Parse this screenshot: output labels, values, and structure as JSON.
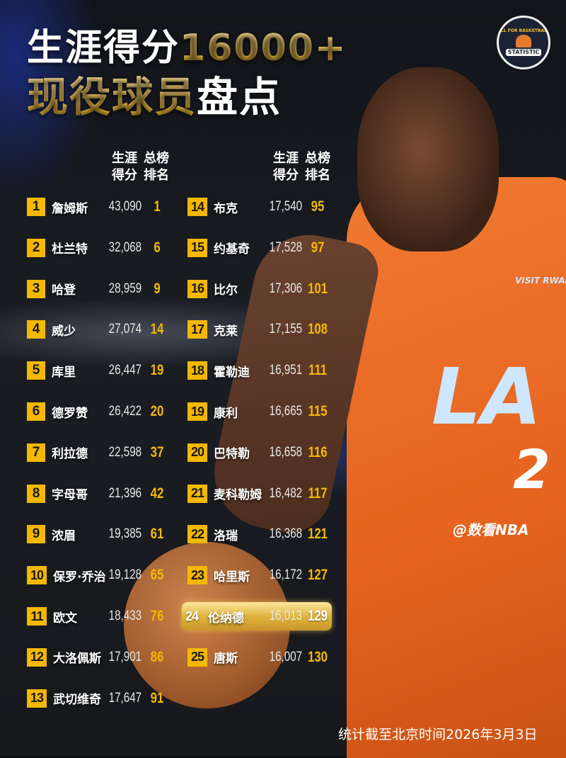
{
  "title": {
    "line1_white": "生涯得分",
    "line1_gold": "16000+",
    "line2_gold": "现役球员",
    "line2_white": "盘点"
  },
  "logo": {
    "top_text": "ALL FOR BASKETBALL",
    "bottom_text": "STATISTIC"
  },
  "columns": {
    "score_header": [
      "生涯",
      "得分"
    ],
    "rank_header": [
      "总榜",
      "排名"
    ]
  },
  "colors": {
    "badge": "#f5b800",
    "rank": "#f5b800",
    "highlight": "#e0b43c"
  },
  "players": [
    {
      "no": "1",
      "name": "詹姆斯",
      "score": "43,090",
      "rank": "1"
    },
    {
      "no": "2",
      "name": "杜兰特",
      "score": "32,068",
      "rank": "6"
    },
    {
      "no": "3",
      "name": "哈登",
      "score": "28,959",
      "rank": "9"
    },
    {
      "no": "4",
      "name": "威少",
      "score": "27,074",
      "rank": "14"
    },
    {
      "no": "5",
      "name": "库里",
      "score": "26,447",
      "rank": "19"
    },
    {
      "no": "6",
      "name": "德罗赞",
      "score": "26,422",
      "rank": "20"
    },
    {
      "no": "7",
      "name": "利拉德",
      "score": "22,598",
      "rank": "37"
    },
    {
      "no": "8",
      "name": "字母哥",
      "score": "21,396",
      "rank": "42"
    },
    {
      "no": "9",
      "name": "浓眉",
      "score": "19,385",
      "rank": "61"
    },
    {
      "no": "10",
      "name": "保罗·乔治",
      "score": "19,128",
      "rank": "65"
    },
    {
      "no": "11",
      "name": "欧文",
      "score": "18,433",
      "rank": "76"
    },
    {
      "no": "12",
      "name": "大洛佩斯",
      "score": "17,901",
      "rank": "86"
    },
    {
      "no": "13",
      "name": "武切维奇",
      "score": "17,647",
      "rank": "91"
    },
    {
      "no": "14",
      "name": "布克",
      "score": "17,540",
      "rank": "95"
    },
    {
      "no": "15",
      "name": "约基奇",
      "score": "17,528",
      "rank": "97"
    },
    {
      "no": "16",
      "name": "比尔",
      "score": "17,306",
      "rank": "101"
    },
    {
      "no": "17",
      "name": "克莱",
      "score": "17,155",
      "rank": "108"
    },
    {
      "no": "18",
      "name": "霍勒迪",
      "score": "16,951",
      "rank": "111"
    },
    {
      "no": "19",
      "name": "康利",
      "score": "16,665",
      "rank": "115"
    },
    {
      "no": "20",
      "name": "巴特勒",
      "score": "16,658",
      "rank": "116"
    },
    {
      "no": "21",
      "name": "麦科勒姆",
      "score": "16,482",
      "rank": "117"
    },
    {
      "no": "22",
      "name": "洛瑞",
      "score": "16,368",
      "rank": "121"
    },
    {
      "no": "23",
      "name": "哈里斯",
      "score": "16,172",
      "rank": "127"
    },
    {
      "no": "24",
      "name": "伦纳德",
      "score": "16,013",
      "rank": "129",
      "highlight": true
    },
    {
      "no": "25",
      "name": "唐斯",
      "score": "16,007",
      "rank": "130"
    }
  ],
  "jersey": {
    "sponsor": "VISIT RWANDA",
    "team": "LA",
    "number": "2"
  },
  "watermark": "@数看NBA",
  "footer": "统计截至北京时间2026年3月3日"
}
